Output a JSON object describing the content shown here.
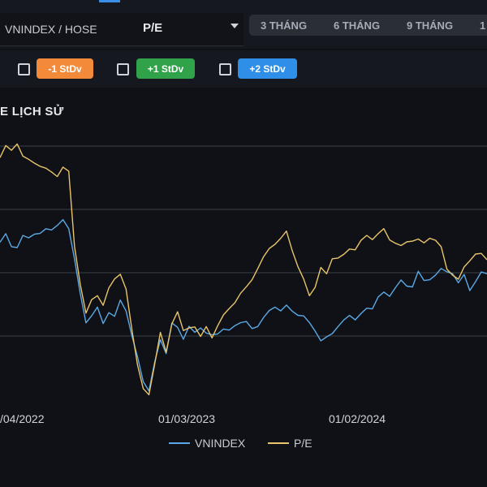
{
  "selector": {
    "market": "VNINDEX / HOSE",
    "metric": "P/E"
  },
  "periods": [
    "3 THÁNG",
    "6 THÁNG",
    "9 THÁNG",
    "1"
  ],
  "stdev": [
    {
      "label": "-1 StDv",
      "color": "#f28a3a"
    },
    {
      "label": "+1 StDv",
      "color": "#2fa24a"
    },
    {
      "label": "+2 StDv",
      "color": "#2f8fe8"
    }
  ],
  "chart_title": "E LỊCH SỬ",
  "chart_data": {
    "type": "line",
    "x_ticks": [
      "/04/2022",
      "01/03/2023",
      "01/02/2024"
    ],
    "gridlines": true,
    "legend_position": "bottom",
    "series": [
      {
        "name": "VNINDEX",
        "color": "#5aa9e6",
        "values": [
          0.62,
          0.66,
          0.61,
          0.6,
          0.64,
          0.63,
          0.65,
          0.66,
          0.68,
          0.67,
          0.68,
          0.7,
          0.67,
          0.56,
          0.43,
          0.31,
          0.33,
          0.36,
          0.3,
          0.35,
          0.34,
          0.4,
          0.35,
          0.25,
          0.17,
          0.08,
          0.05,
          0.16,
          0.24,
          0.18,
          0.3,
          0.29,
          0.25,
          0.3,
          0.27,
          0.28,
          0.26,
          0.26,
          0.27,
          0.29,
          0.28,
          0.29,
          0.3,
          0.31,
          0.29,
          0.3,
          0.33,
          0.35,
          0.36,
          0.35,
          0.38,
          0.36,
          0.34,
          0.33,
          0.3,
          0.27,
          0.24,
          0.26,
          0.27,
          0.29,
          0.31,
          0.33,
          0.32,
          0.35,
          0.37,
          0.36,
          0.4,
          0.42,
          0.41,
          0.45,
          0.48,
          0.45,
          0.44,
          0.5,
          0.47,
          0.48,
          0.5,
          0.52,
          0.5,
          0.49,
          0.46,
          0.5,
          0.44,
          0.47,
          0.5,
          0.49
        ]
      },
      {
        "name": "P/E",
        "color": "#e8c46a",
        "values": [
          0.95,
          0.99,
          0.97,
          1.0,
          0.96,
          0.95,
          0.93,
          0.91,
          0.9,
          0.89,
          0.88,
          0.92,
          0.9,
          0.6,
          0.45,
          0.34,
          0.4,
          0.42,
          0.38,
          0.44,
          0.47,
          0.49,
          0.44,
          0.29,
          0.15,
          0.05,
          0.02,
          0.14,
          0.27,
          0.2,
          0.31,
          0.35,
          0.27,
          0.28,
          0.29,
          0.26,
          0.3,
          0.25,
          0.29,
          0.33,
          0.36,
          0.39,
          0.43,
          0.45,
          0.47,
          0.51,
          0.56,
          0.6,
          0.62,
          0.64,
          0.66,
          0.58,
          0.52,
          0.48,
          0.42,
          0.45,
          0.52,
          0.49,
          0.55,
          0.56,
          0.58,
          0.6,
          0.59,
          0.62,
          0.64,
          0.63,
          0.66,
          0.68,
          0.63,
          0.61,
          0.6,
          0.62,
          0.63,
          0.64,
          0.62,
          0.63,
          0.62,
          0.6,
          0.52,
          0.5,
          0.48,
          0.52,
          0.54,
          0.57,
          0.58,
          0.56
        ]
      }
    ]
  }
}
